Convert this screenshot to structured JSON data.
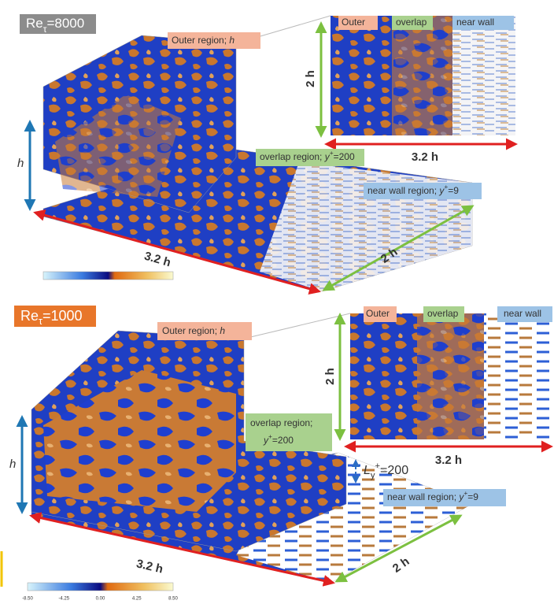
{
  "panels": [
    {
      "re_label": [
        {
          "t": "Re"
        },
        {
          "t": "τ",
          "style": "sub"
        },
        {
          "t": "=8000"
        }
      ],
      "outer_label": [
        {
          "t": "Outer region; "
        },
        {
          "t": "h",
          "style": "italic"
        }
      ],
      "inset_tabs": [
        "Outer",
        "overlap",
        "near wall"
      ],
      "inset_height": "2 h",
      "inset_width": "3.2 h",
      "overlap_label": [
        [
          {
            "t": "overlap region; "
          },
          {
            "t": "y",
            "style": "italic"
          },
          {
            "t": "+",
            "style": "sup"
          },
          {
            "t": "=200"
          }
        ]
      ],
      "near_wall_label": [
        {
          "t": "near wall region; "
        },
        {
          "t": "y",
          "style": "italic"
        },
        {
          "t": "+",
          "style": "sup"
        },
        {
          "t": "=9"
        }
      ],
      "height": "h",
      "length": "3.2 h",
      "depth": "2 h"
    },
    {
      "re_label": [
        {
          "t": "Re"
        },
        {
          "t": "τ",
          "style": "sub"
        },
        {
          "t": "=1000"
        }
      ],
      "outer_label": [
        {
          "t": "Outer region; "
        },
        {
          "t": "h",
          "style": "italic"
        }
      ],
      "inset_tabs": [
        "Outer",
        "overlap",
        "near wall"
      ],
      "inset_height": "2 h",
      "inset_width": "3.2 h",
      "overlap_label": [
        [
          {
            "t": "overlap region;"
          }
        ],
        [
          {
            "t": "y",
            "style": "italic"
          },
          {
            "t": "+",
            "style": "sup"
          },
          {
            "t": "=200"
          }
        ]
      ],
      "spacing_label": [
        {
          "t": "L",
          "style": "italic"
        },
        {
          "t": "y",
          "style": "sub"
        },
        {
          "t": "+",
          "style": "sup"
        },
        {
          "t": "=200"
        }
      ],
      "near_wall_label": [
        {
          "t": "near wall region; "
        },
        {
          "t": "y",
          "style": "italic"
        },
        {
          "t": "+",
          "style": "sup"
        },
        {
          "t": "=9"
        }
      ],
      "height": "h",
      "length": "3.2 h",
      "depth": "2 h",
      "colorbar_ticks": [
        "-8.50",
        "-4.25",
        "0.00",
        "4.25",
        "8.50"
      ]
    }
  ]
}
